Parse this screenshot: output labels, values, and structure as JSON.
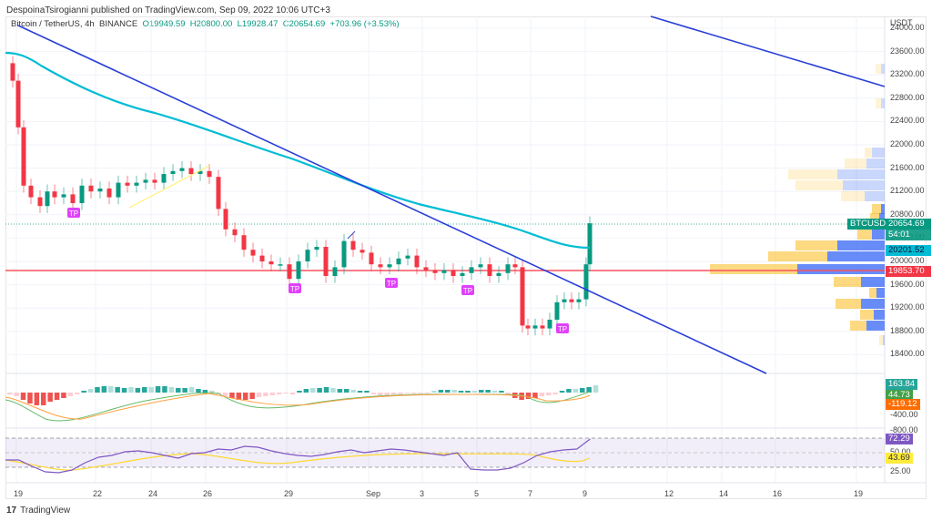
{
  "header": {
    "publisher": "DespoinaTsirogianni published on TradingView.com, Sep 09, 2022 10:06 UTC+3"
  },
  "legend": {
    "symbol": "Bitcoin / TetherUS, 4h, BINANCE",
    "open": "O19949.59",
    "high": "H20800.00",
    "low": "L19928.47",
    "close": "C20654.69",
    "change": "+703.96 (+3.53%)"
  },
  "price_axis": {
    "currency": "USDT",
    "ticks": [
      "24000.00",
      "23600.00",
      "23200.00",
      "22800.00",
      "22400.00",
      "22000.00",
      "21600.00",
      "21200.00",
      "20800.00",
      "20400.00",
      "20000.00",
      "19600.00",
      "19200.00",
      "18800.00",
      "18400.00"
    ]
  },
  "tags": {
    "symbol": "BTCUSDT",
    "last_price": "20654.69",
    "countdown": "54:01",
    "ma_value": "20201.52",
    "support_level": "19853.70",
    "macd_hist": "163.84",
    "macd_line": "44.73",
    "macd_signal": "-119.12",
    "macd_axis_1": "-400.00",
    "macd_axis_2": "-800.00",
    "rsi": "72.29",
    "rsi_ma": "43.69",
    "rsi_axis_50": "50.00",
    "rsi_axis_25": "25.00"
  },
  "time_axis": [
    "19",
    "22",
    "24",
    "26",
    "29",
    "Sep",
    "3",
    "5",
    "7",
    "9",
    "12",
    "14",
    "16",
    "19"
  ],
  "tp_label": "TP",
  "footer": {
    "brand": "TradingView",
    "logo": "17"
  },
  "colors": {
    "up": "#089981",
    "down": "#f23645",
    "ma": "#00bcd4",
    "trend": "#2a3fd8",
    "support": "#f7525f",
    "tp": "#e040fb",
    "rsi": "#7e57c2",
    "rsi_ma": "#fdd835"
  },
  "chart_data": {
    "type": "candlestick",
    "title": "Bitcoin / TetherUS, 4h, BINANCE",
    "ylabel": "USDT",
    "ylim": [
      18300,
      24000
    ],
    "x_range": [
      "Aug 19 2022",
      "Sep 20 2022"
    ],
    "last": {
      "open": 19949.59,
      "high": 20800.0,
      "low": 19928.47,
      "close": 20654.69,
      "change": 703.96,
      "change_pct": 3.53
    },
    "horizontal_lines": [
      {
        "name": "support",
        "value": 19853.7
      }
    ],
    "moving_average": {
      "last": 20201.52
    },
    "trendlines": [
      {
        "name": "descending-1",
        "from": [
          "Aug 19",
          24000
        ],
        "to": [
          "Sep 15",
          18450
        ]
      },
      {
        "name": "descending-2",
        "from": [
          "Sep 11",
          24000
        ],
        "to": [
          "Sep 20",
          23050
        ]
      }
    ],
    "approx_closes": [
      {
        "date": "Aug 19",
        "value": 23200
      },
      {
        "date": "Aug 20",
        "value": 21300
      },
      {
        "date": "Aug 22",
        "value": 21450
      },
      {
        "date": "Aug 24",
        "value": 21550
      },
      {
        "date": "Aug 25",
        "value": 21700
      },
      {
        "date": "Aug 26",
        "value": 21500
      },
      {
        "date": "Aug 27",
        "value": 20250
      },
      {
        "date": "Aug 29",
        "value": 19800
      },
      {
        "date": "Aug 30",
        "value": 20200
      },
      {
        "date": "Sep 1",
        "value": 20050
      },
      {
        "date": "Sep 3",
        "value": 19900
      },
      {
        "date": "Sep 5",
        "value": 19800
      },
      {
        "date": "Sep 6",
        "value": 19950
      },
      {
        "date": "Sep 7",
        "value": 18800
      },
      {
        "date": "Sep 8",
        "value": 19300
      },
      {
        "date": "Sep 9",
        "value": 20654.69
      }
    ],
    "indicators": {
      "macd": {
        "histogram": 163.84,
        "macd": 44.73,
        "signal": -119.12
      },
      "rsi": {
        "value": 72.29,
        "ma": 43.69,
        "bands": [
          70,
          50,
          30
        ]
      }
    }
  }
}
